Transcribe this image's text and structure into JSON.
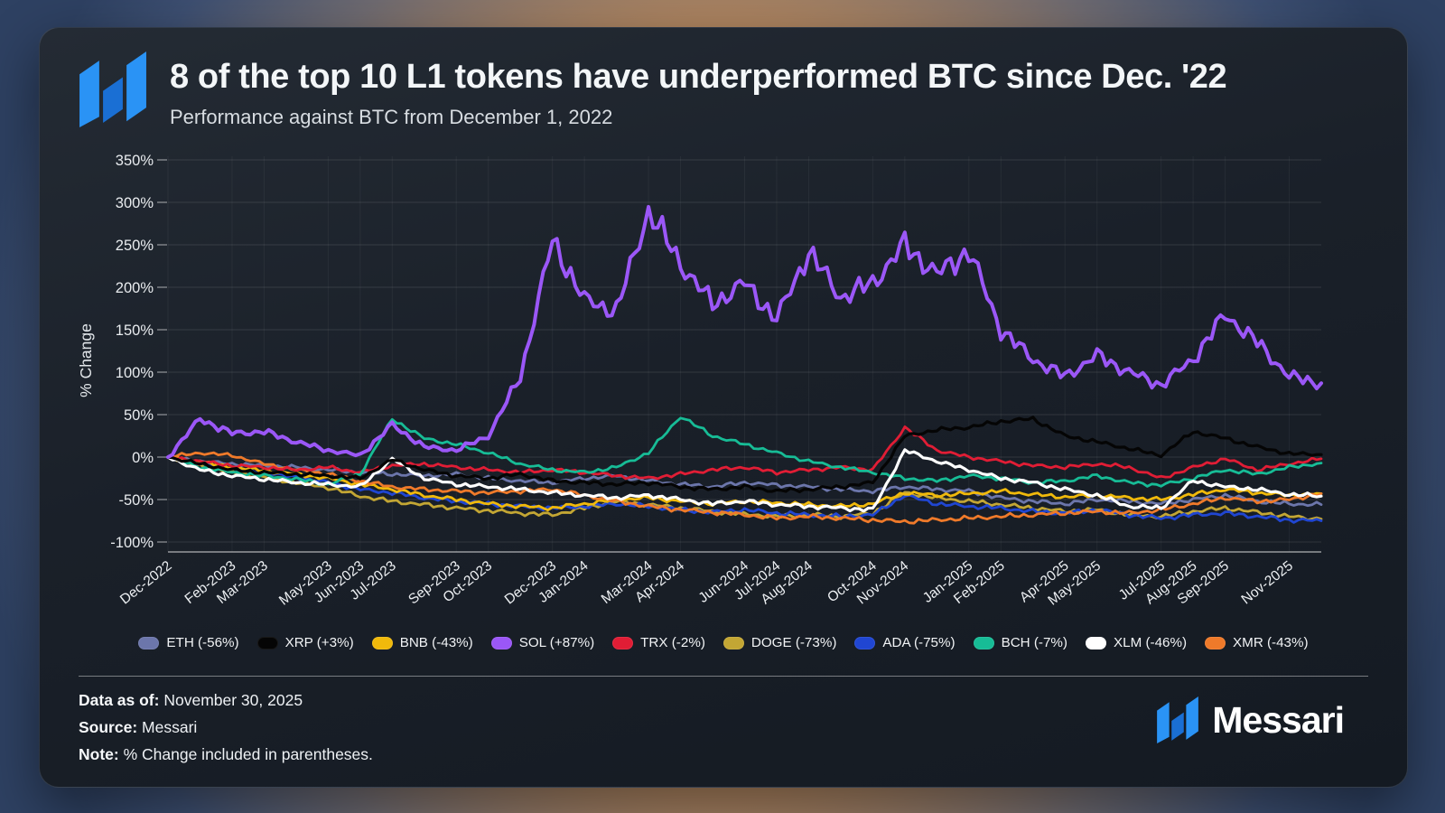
{
  "header": {
    "title": "8 of the top 10 L1 tokens have underperformed BTC since Dec. '22",
    "subtitle": "Performance against BTC from December 1, 2022"
  },
  "brand": {
    "wordmark": "Messari",
    "logo_color": "#2a93f5",
    "logo_color_dark": "#1a6fd4"
  },
  "footer": {
    "lines": [
      {
        "label": "Data as of:",
        "value": "November 30, 2025"
      },
      {
        "label": "Source:",
        "value": "Messari"
      },
      {
        "label": "Note:",
        "value": "% Change included in parentheses."
      }
    ]
  },
  "chart_data": {
    "type": "line",
    "title": "8 of the top 10 L1 tokens have underperformed BTC since Dec. '22",
    "subtitle": "Performance against BTC from December 1, 2022",
    "ylabel": "% Change",
    "ylim": [
      -100,
      350
    ],
    "grid": true,
    "legend_position": "bottom",
    "x_start": "Dec-2022",
    "x_end": "Nov-2025",
    "yticks": [
      "350%",
      "300%",
      "250%",
      "200%",
      "150%",
      "100%",
      "50%",
      "0%",
      "-50%",
      "-100%"
    ],
    "ytick_values": [
      350,
      300,
      250,
      200,
      150,
      100,
      50,
      0,
      -50,
      -100
    ],
    "xticks": [
      {
        "label": "Dec-2022",
        "month": 0
      },
      {
        "label": "Feb-2023",
        "month": 2
      },
      {
        "label": "Mar-2023",
        "month": 3
      },
      {
        "label": "May-2023",
        "month": 5
      },
      {
        "label": "Jun-2023",
        "month": 6
      },
      {
        "label": "Jul-2023",
        "month": 7
      },
      {
        "label": "Sep-2023",
        "month": 9
      },
      {
        "label": "Oct-2023",
        "month": 10
      },
      {
        "label": "Dec-2023",
        "month": 12
      },
      {
        "label": "Jan-2024",
        "month": 13
      },
      {
        "label": "Mar-2024",
        "month": 15
      },
      {
        "label": "Apr-2024",
        "month": 16
      },
      {
        "label": "Jun-2024",
        "month": 18
      },
      {
        "label": "Jul-2024",
        "month": 19
      },
      {
        "label": "Aug-2024",
        "month": 20
      },
      {
        "label": "Oct-2024",
        "month": 22
      },
      {
        "label": "Nov-2024",
        "month": 23
      },
      {
        "label": "Jan-2025",
        "month": 25
      },
      {
        "label": "Feb-2025",
        "month": 26
      },
      {
        "label": "Apr-2025",
        "month": 28
      },
      {
        "label": "May-2025",
        "month": 29
      },
      {
        "label": "Jul-2025",
        "month": 31
      },
      {
        "label": "Aug-2025",
        "month": 32
      },
      {
        "label": "Sep-2025",
        "month": 33
      },
      {
        "label": "Nov-2025",
        "month": 35
      }
    ],
    "series": [
      {
        "name": "ETH",
        "change": "-56%",
        "legend_label": "ETH (-56%)",
        "color": "#6c76ab",
        "monthly_pct": [
          0,
          -5,
          -8,
          -10,
          -12,
          -15,
          -18,
          -20,
          -22,
          -20,
          -25,
          -28,
          -30,
          -25,
          -22,
          -28,
          -32,
          -35,
          -30,
          -33,
          -35,
          -38,
          -40,
          -35,
          -38,
          -40,
          -48,
          -52,
          -55,
          -50,
          -52,
          -55,
          -50,
          -45,
          -52,
          -55,
          -56
        ]
      },
      {
        "name": "XRP",
        "change": "+3%",
        "legend_label": "XRP (+3%)",
        "color": "#050505",
        "monthly_pct": [
          0,
          -8,
          -15,
          -18,
          -20,
          -22,
          -25,
          -3,
          -15,
          -22,
          -25,
          -20,
          -28,
          -30,
          -32,
          -30,
          -35,
          -38,
          -35,
          -40,
          -38,
          -35,
          -30,
          25,
          32,
          35,
          42,
          45,
          25,
          18,
          10,
          2,
          30,
          22,
          12,
          4,
          3
        ]
      },
      {
        "name": "BNB",
        "change": "-43%",
        "legend_label": "BNB (-43%)",
        "color": "#f0b90b",
        "monthly_pct": [
          0,
          -6,
          -12,
          -16,
          -20,
          -25,
          -32,
          -38,
          -45,
          -50,
          -55,
          -58,
          -60,
          -55,
          -50,
          -48,
          -52,
          -55,
          -52,
          -54,
          -56,
          -58,
          -55,
          -42,
          -45,
          -43,
          -40,
          -44,
          -47,
          -45,
          -48,
          -50,
          -44,
          -38,
          -42,
          -45,
          -43
        ]
      },
      {
        "name": "SOL",
        "change": "+87%",
        "legend_label": "SOL (+87%)",
        "color": "#9b57f7",
        "monthly_pct": [
          0,
          45,
          28,
          30,
          18,
          8,
          2,
          38,
          12,
          8,
          25,
          95,
          255,
          185,
          172,
          290,
          228,
          180,
          205,
          162,
          242,
          188,
          205,
          250,
          215,
          243,
          150,
          115,
          95,
          120,
          100,
          85,
          115,
          168,
          135,
          95,
          87
        ]
      },
      {
        "name": "TRX",
        "change": "-2%",
        "legend_label": "TRX (-2%)",
        "color": "#e11d35",
        "monthly_pct": [
          0,
          -5,
          -10,
          -12,
          -15,
          -12,
          -18,
          -10,
          -8,
          -12,
          -15,
          -18,
          -15,
          -18,
          -22,
          -25,
          -20,
          -15,
          -12,
          -18,
          -15,
          -12,
          -15,
          35,
          8,
          0,
          -5,
          -10,
          -12,
          -8,
          -12,
          -25,
          -12,
          -2,
          -15,
          -8,
          -2
        ]
      },
      {
        "name": "DOGE",
        "change": "-73%",
        "legend_label": "DOGE (-73%)",
        "color": "#c3a634",
        "monthly_pct": [
          0,
          -10,
          -18,
          -24,
          -30,
          -36,
          -46,
          -52,
          -56,
          -60,
          -63,
          -66,
          -68,
          -60,
          -52,
          -56,
          -60,
          -64,
          -67,
          -70,
          -68,
          -70,
          -66,
          -42,
          -48,
          -52,
          -56,
          -60,
          -64,
          -62,
          -68,
          -70,
          -64,
          -60,
          -65,
          -70,
          -73
        ]
      },
      {
        "name": "ADA",
        "change": "-75%",
        "legend_label": "ADA (-75%)",
        "color": "#2046d2",
        "monthly_pct": [
          0,
          -8,
          -14,
          -18,
          -24,
          -30,
          -38,
          -42,
          -48,
          -52,
          -55,
          -58,
          -60,
          -58,
          -55,
          -58,
          -62,
          -65,
          -62,
          -66,
          -68,
          -70,
          -68,
          -45,
          -55,
          -58,
          -60,
          -64,
          -66,
          -62,
          -68,
          -72,
          -68,
          -66,
          -70,
          -74,
          -75
        ]
      },
      {
        "name": "BCH",
        "change": "-7%",
        "legend_label": "BCH (-7%)",
        "color": "#17bc96",
        "monthly_pct": [
          0,
          -12,
          -18,
          -22,
          -26,
          -32,
          -20,
          45,
          22,
          15,
          5,
          -8,
          -15,
          -18,
          -12,
          5,
          48,
          25,
          15,
          5,
          -5,
          -12,
          -18,
          -25,
          -28,
          -22,
          -25,
          -30,
          -28,
          -22,
          -30,
          -33,
          -25,
          -15,
          -20,
          -12,
          -7
        ]
      },
      {
        "name": "XLM",
        "change": "-46%",
        "legend_label": "XLM (-46%)",
        "color": "#ffffff",
        "monthly_pct": [
          0,
          -15,
          -22,
          -26,
          -30,
          -32,
          -35,
          -2,
          -25,
          -32,
          -35,
          -38,
          -42,
          -45,
          -48,
          -45,
          -50,
          -55,
          -52,
          -56,
          -58,
          -60,
          -62,
          8,
          -5,
          -15,
          -25,
          -30,
          -38,
          -45,
          -58,
          -60,
          -28,
          -35,
          -38,
          -44,
          -46
        ]
      },
      {
        "name": "XMR",
        "change": "-43%",
        "legend_label": "XMR (-43%)",
        "color": "#ef7a2a",
        "monthly_pct": [
          0,
          5,
          2,
          -8,
          -15,
          -20,
          -28,
          -35,
          -38,
          -40,
          -42,
          -40,
          -38,
          -45,
          -52,
          -58,
          -62,
          -65,
          -68,
          -72,
          -70,
          -72,
          -74,
          -76,
          -74,
          -72,
          -70,
          -68,
          -66,
          -64,
          -66,
          -62,
          -55,
          -48,
          -52,
          -50,
          -43
        ]
      }
    ]
  }
}
